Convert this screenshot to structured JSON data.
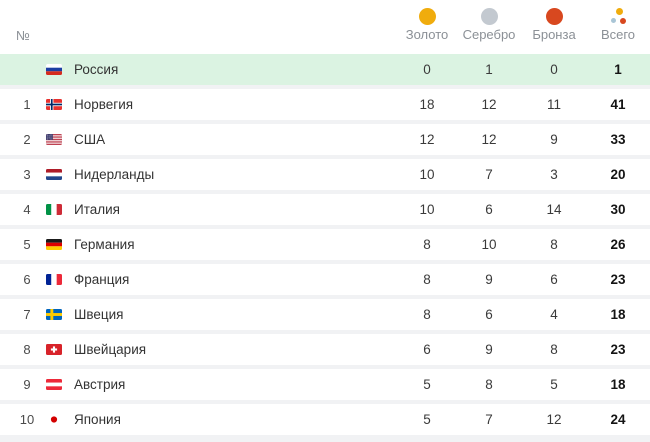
{
  "chart_data": {
    "type": "table",
    "headers": {
      "rank": "№",
      "gold": "Золото",
      "silver": "Серебро",
      "bronze": "Бронза",
      "total": "Всего"
    },
    "rows": [
      {
        "rank": "",
        "country": "Россия",
        "flag": "ru",
        "gold": 0,
        "silver": 1,
        "bronze": 0,
        "total": 1,
        "highlighted": true
      },
      {
        "rank": "1",
        "country": "Норвегия",
        "flag": "no",
        "gold": 18,
        "silver": 12,
        "bronze": 11,
        "total": 41,
        "highlighted": false
      },
      {
        "rank": "2",
        "country": "США",
        "flag": "us",
        "gold": 12,
        "silver": 12,
        "bronze": 9,
        "total": 33,
        "highlighted": false
      },
      {
        "rank": "3",
        "country": "Нидерланды",
        "flag": "nl",
        "gold": 10,
        "silver": 7,
        "bronze": 3,
        "total": 20,
        "highlighted": false
      },
      {
        "rank": "4",
        "country": "Италия",
        "flag": "it",
        "gold": 10,
        "silver": 6,
        "bronze": 14,
        "total": 30,
        "highlighted": false
      },
      {
        "rank": "5",
        "country": "Германия",
        "flag": "de",
        "gold": 8,
        "silver": 10,
        "bronze": 8,
        "total": 26,
        "highlighted": false
      },
      {
        "rank": "6",
        "country": "Франция",
        "flag": "fr",
        "gold": 8,
        "silver": 9,
        "bronze": 6,
        "total": 23,
        "highlighted": false
      },
      {
        "rank": "7",
        "country": "Швеция",
        "flag": "se",
        "gold": 8,
        "silver": 6,
        "bronze": 4,
        "total": 18,
        "highlighted": false
      },
      {
        "rank": "8",
        "country": "Швейцария",
        "flag": "ch",
        "gold": 6,
        "silver": 9,
        "bronze": 8,
        "total": 23,
        "highlighted": false
      },
      {
        "rank": "9",
        "country": "Австрия",
        "flag": "at",
        "gold": 5,
        "silver": 8,
        "bronze": 5,
        "total": 18,
        "highlighted": false
      },
      {
        "rank": "10",
        "country": "Япония",
        "flag": "jp",
        "gold": 5,
        "silver": 7,
        "bronze": 12,
        "total": 24,
        "highlighted": false
      }
    ]
  },
  "style": {
    "medal_colors": {
      "gold": "#F0AC0D",
      "silver": "#C3C9D0",
      "bronze": "#D8481F"
    },
    "total_icon_colors": [
      "#F0AC0D",
      "#A9C5D6",
      "#D8481F"
    ],
    "highlight_row_color": "#DBF3E2"
  }
}
